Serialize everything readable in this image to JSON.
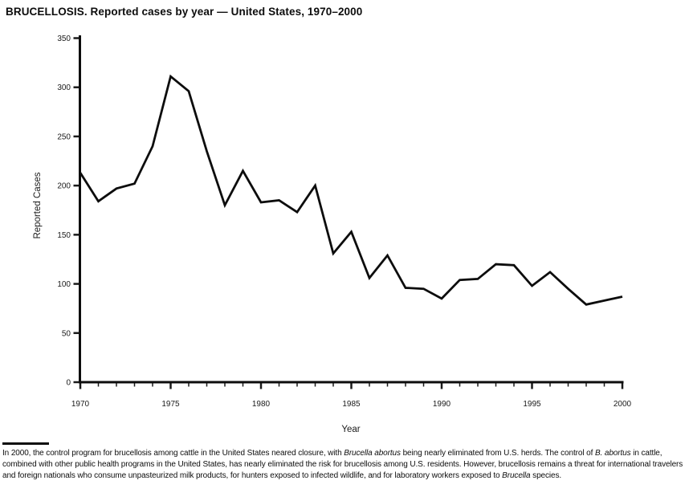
{
  "title": "BRUCELLOSIS. Reported cases by year — United States, 1970–2000",
  "chart_data": {
    "type": "line",
    "title": "BRUCELLOSIS. Reported cases by year — United States, 1970–2000",
    "xlabel": "Year",
    "ylabel": "Reported Cases",
    "x": [
      1970,
      1971,
      1972,
      1973,
      1974,
      1975,
      1976,
      1977,
      1978,
      1979,
      1980,
      1981,
      1982,
      1983,
      1984,
      1985,
      1986,
      1987,
      1988,
      1989,
      1990,
      1991,
      1992,
      1993,
      1994,
      1995,
      1996,
      1997,
      1998,
      1999,
      2000
    ],
    "values": [
      213,
      184,
      197,
      202,
      240,
      311,
      296,
      235,
      180,
      215,
      183,
      185,
      173,
      200,
      131,
      153,
      106,
      129,
      96,
      95,
      85,
      104,
      105,
      120,
      119,
      98,
      112,
      95,
      79,
      83,
      87
    ],
    "xlim": [
      1970,
      2000
    ],
    "ylim": [
      0,
      350
    ],
    "y_ticks": [
      0,
      50,
      100,
      150,
      200,
      250,
      300,
      350
    ],
    "x_major_ticks": [
      1970,
      1975,
      1980,
      1985,
      1990,
      1995,
      2000
    ],
    "x_minor_tick_interval": 1,
    "grid": false,
    "legend": "none",
    "line_color": "#0d0d0d",
    "axis_color": "#1a1a1a"
  },
  "footnote": {
    "segments": [
      {
        "text": "In 2000, the control program for brucellosis among cattle in the United States neared closure, with ",
        "italic": false
      },
      {
        "text": "Brucella abortus",
        "italic": true
      },
      {
        "text": " being nearly eliminated from U.S. herds. The control of ",
        "italic": false
      },
      {
        "text": "B. abortus",
        "italic": true
      },
      {
        "text": " in cattle, combined with other public health programs in the United States, has nearly eliminated the risk for brucellosis among U.S. residents. However, brucellosis remains a threat for international travelers and foreign nationals who consume unpasteurized milk products, for hunters exposed to infected wildlife, and for laboratory workers exposed to ",
        "italic": false
      },
      {
        "text": "Brucella",
        "italic": true
      },
      {
        "text": " species.",
        "italic": false
      }
    ]
  }
}
